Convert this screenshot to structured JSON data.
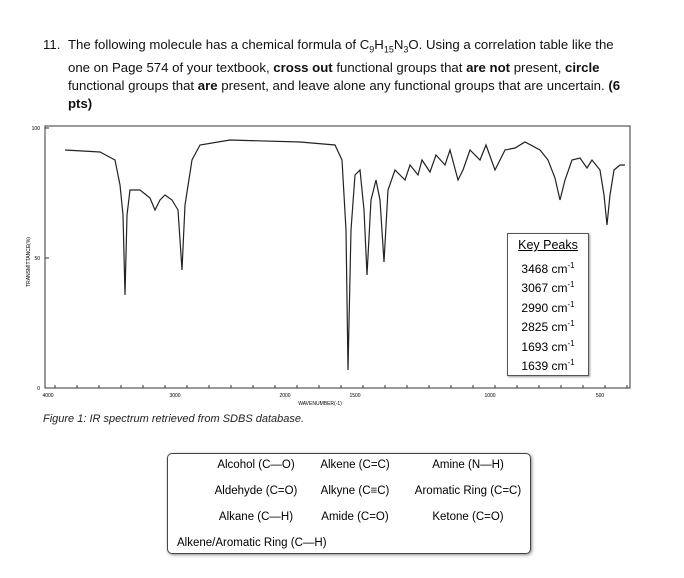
{
  "question": {
    "number": "11.",
    "segments": [
      {
        "t": "The following molecule has a chemical formula of C"
      },
      {
        "sub": "9"
      },
      {
        "t": "H"
      },
      {
        "sub": "15"
      },
      {
        "t": "N"
      },
      {
        "sub": "3"
      },
      {
        "t": "O. Using a correlation table like the one on Page 574 of your textbook, "
      },
      {
        "b": "cross out"
      },
      {
        "t": " functional groups that "
      },
      {
        "b": "are not"
      },
      {
        "t": " present, "
      },
      {
        "b": "circle"
      },
      {
        "t": " functional groups that "
      },
      {
        "b": "are"
      },
      {
        "t": " present, and leave alone any functional groups that are uncertain. "
      },
      {
        "b": "(6 pts)"
      }
    ]
  },
  "figure": {
    "y_ticks": [
      "100",
      "50",
      "0"
    ],
    "x_ticks": [
      "4000",
      "3000",
      "2000",
      "1500",
      "1000",
      "500"
    ],
    "x_label": "WAVENUMBER(-1)",
    "y_label": "TRANSMITTANCE(%)",
    "key_peaks": {
      "title": "Key Peaks",
      "peaks": [
        {
          "value": "3468 cm",
          "sup": "-1"
        },
        {
          "value": "3067 cm",
          "sup": "-1"
        },
        {
          "value": "2990 cm",
          "sup": "-1"
        },
        {
          "value": "2825 cm",
          "sup": "-1"
        },
        {
          "value": "1693 cm",
          "sup": "-1"
        },
        {
          "value": "1639 cm",
          "sup": "-1"
        }
      ]
    },
    "caption": "Figure 1: IR spectrum retrieved from SDBS database."
  },
  "groups": [
    [
      "Alcohol (C—O)",
      "Alkene (C=C)",
      "Amine (N—H)"
    ],
    [
      "Aldehyde (C=O)",
      "Alkyne (C≡C)",
      "Aromatic Ring (C=C)"
    ],
    [
      "Alkane (C—H)",
      "Amide (C=O)",
      "Ketone (C=O)"
    ],
    [
      "Alkene/Aromatic Ring (C—H)"
    ]
  ]
}
